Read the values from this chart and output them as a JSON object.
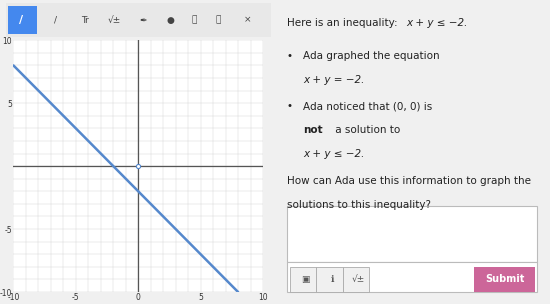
{
  "bg_color": "#f0f0f0",
  "toolbar_bg": "#e8e8e8",
  "graph_bg": "#ffffff",
  "grid_color": "#d0d0d0",
  "axis_color": "#555555",
  "line_color": "#5588cc",
  "line_width": 1.8,
  "xlim": [
    -10,
    10
  ],
  "ylim": [
    -10,
    10
  ],
  "xticks": [
    -10,
    -5,
    0,
    5,
    10
  ],
  "xtick_labels": [
    "-10",
    "-5",
    "0",
    "5",
    "10"
  ],
  "yticks": [
    -10,
    -5,
    5,
    10
  ],
  "ytick_labels": [
    "-10",
    "-5",
    "5",
    "10"
  ],
  "right_panel_bg": "#f5f5f5",
  "text_color": "#222222",
  "submit_bg": "#cc6699",
  "submit_text": "Submit",
  "submit_text_color": "#ffffff",
  "toolbar_selected_color": "#4488ee",
  "input_box_border": "#bbbbbb",
  "input_box_bg": "#ffffff",
  "origin_circle_color": "#5588cc"
}
